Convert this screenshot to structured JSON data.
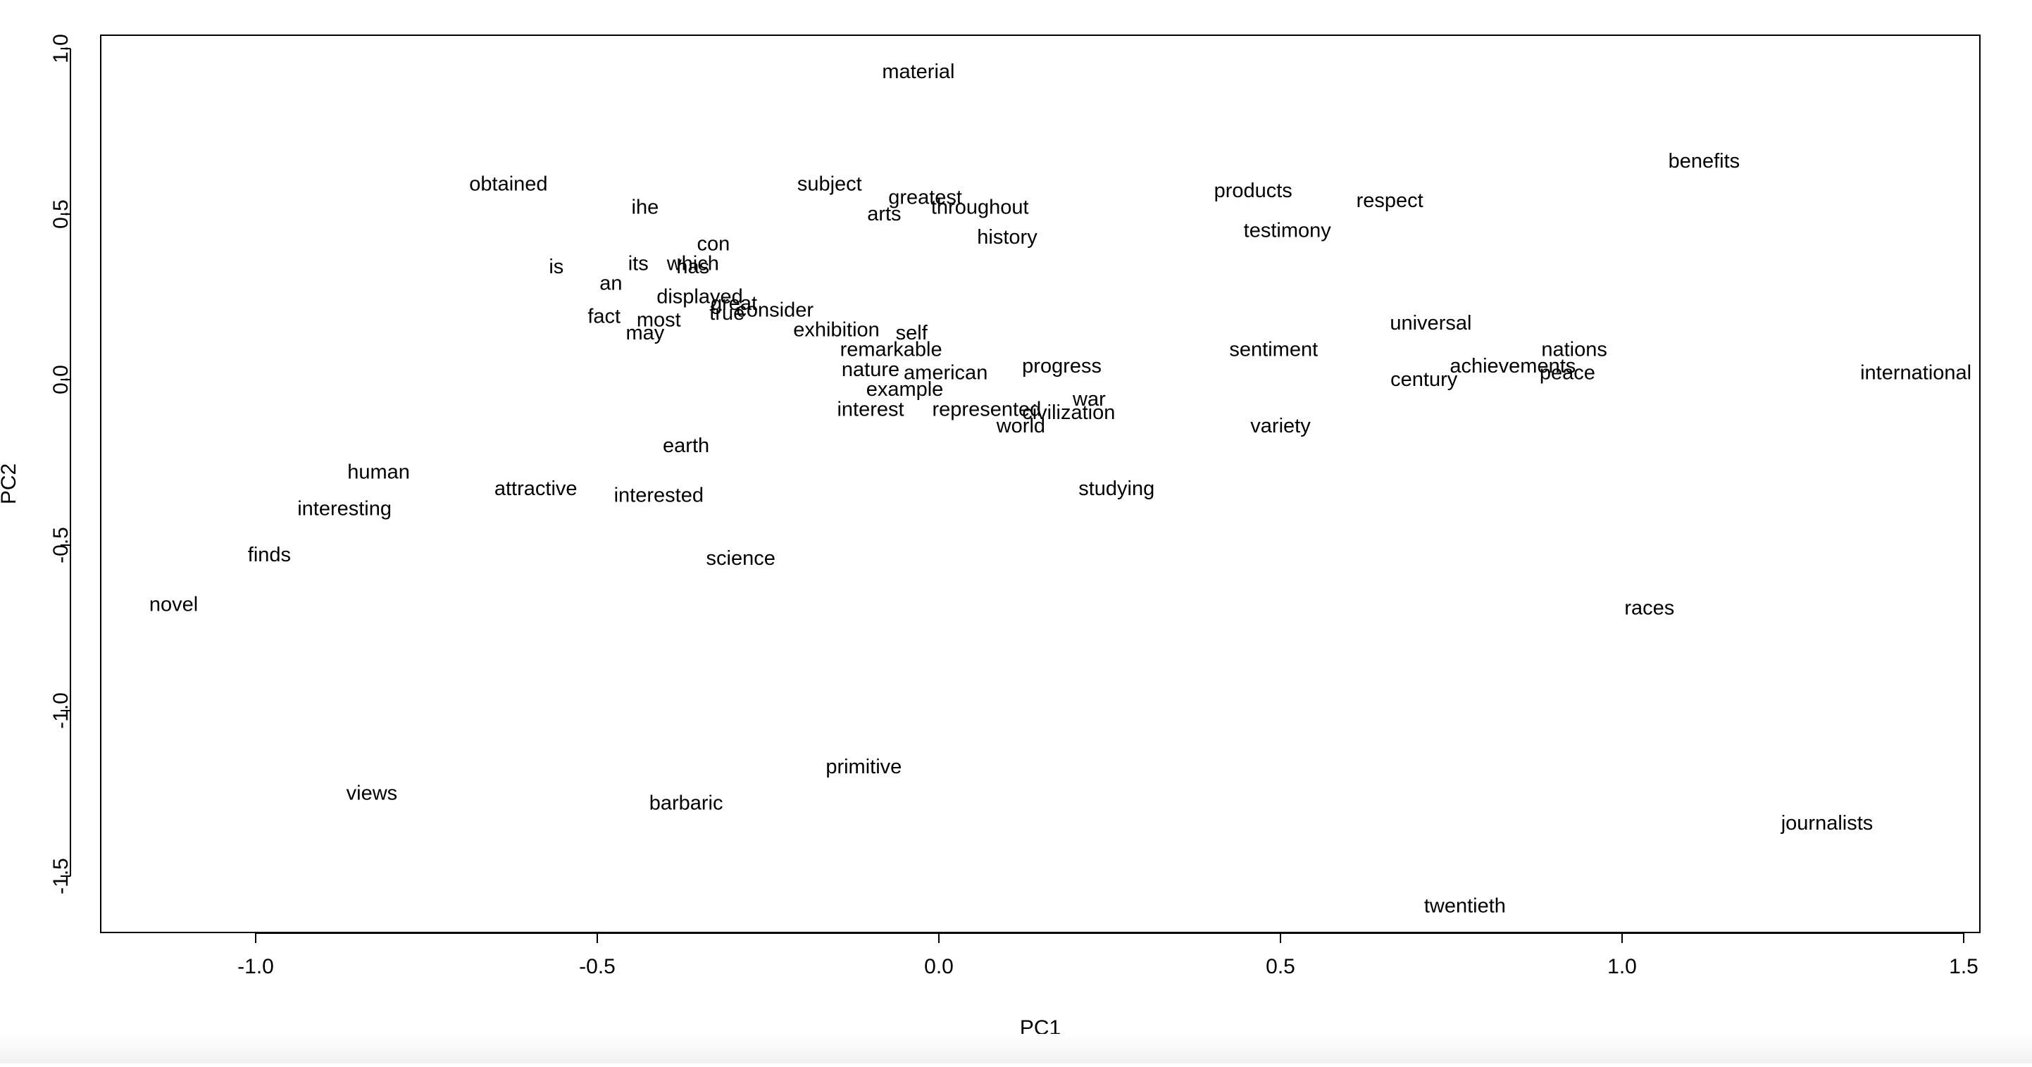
{
  "colors": {
    "background": "#ffffff",
    "ink": "#000000"
  },
  "chart_data": {
    "type": "scatter",
    "title": "",
    "xlabel": "PC1",
    "ylabel": "PC2",
    "xlim": [
      -1.22,
      1.53
    ],
    "ylim": [
      -1.68,
      1.04
    ],
    "xticks": [
      -1.0,
      -0.5,
      0.0,
      0.5,
      1.0,
      1.5
    ],
    "yticks": [
      1.0,
      0.5,
      0.0,
      -0.5,
      -1.0,
      -1.5
    ],
    "xtick_labels": [
      "-1.0",
      "-0.5",
      "0.0",
      "0.5",
      "1.0",
      "1.5"
    ],
    "ytick_labels": [
      "1.0",
      "0.5",
      "0.0",
      "-0.5",
      "-1.0",
      "-1.5"
    ],
    "grid": false,
    "legend": "none",
    "marker": "text label at point",
    "points": [
      {
        "label": "material",
        "x": -0.03,
        "y": 0.93
      },
      {
        "label": "benefits",
        "x": 1.12,
        "y": 0.66
      },
      {
        "label": "obtained",
        "x": -0.63,
        "y": 0.59
      },
      {
        "label": "subject",
        "x": -0.16,
        "y": 0.59
      },
      {
        "label": "products",
        "x": 0.46,
        "y": 0.57
      },
      {
        "label": "greatest",
        "x": -0.02,
        "y": 0.55
      },
      {
        "label": "respect",
        "x": 0.66,
        "y": 0.54
      },
      {
        "label": "ihe",
        "x": -0.43,
        "y": 0.52
      },
      {
        "label": "throughout",
        "x": 0.06,
        "y": 0.52
      },
      {
        "label": "arts",
        "x": -0.08,
        "y": 0.5
      },
      {
        "label": "testimony",
        "x": 0.51,
        "y": 0.45
      },
      {
        "label": "history",
        "x": 0.1,
        "y": 0.43
      },
      {
        "label": "con",
        "x": -0.33,
        "y": 0.41
      },
      {
        "label": "is",
        "x": -0.56,
        "y": 0.34
      },
      {
        "label": "its",
        "x": -0.44,
        "y": 0.35
      },
      {
        "label": "which",
        "x": -0.36,
        "y": 0.35
      },
      {
        "label": "has",
        "x": -0.36,
        "y": 0.34
      },
      {
        "label": "an",
        "x": -0.48,
        "y": 0.29
      },
      {
        "label": "displayed",
        "x": -0.35,
        "y": 0.25
      },
      {
        "label": "great",
        "x": -0.3,
        "y": 0.23
      },
      {
        "label": "true",
        "x": -0.31,
        "y": 0.2
      },
      {
        "label": "consider",
        "x": -0.24,
        "y": 0.21
      },
      {
        "label": "fact",
        "x": -0.49,
        "y": 0.19
      },
      {
        "label": "most",
        "x": -0.41,
        "y": 0.18
      },
      {
        "label": "may",
        "x": -0.43,
        "y": 0.14
      },
      {
        "label": "exhibition",
        "x": -0.15,
        "y": 0.15
      },
      {
        "label": "self",
        "x": -0.04,
        "y": 0.14
      },
      {
        "label": "universal",
        "x": 0.72,
        "y": 0.17
      },
      {
        "label": "remarkable",
        "x": -0.07,
        "y": 0.09
      },
      {
        "label": "sentiment",
        "x": 0.49,
        "y": 0.09
      },
      {
        "label": "nations",
        "x": 0.93,
        "y": 0.09
      },
      {
        "label": "nature",
        "x": -0.1,
        "y": 0.03
      },
      {
        "label": "american",
        "x": 0.01,
        "y": 0.02
      },
      {
        "label": "progress",
        "x": 0.18,
        "y": 0.04
      },
      {
        "label": "achievements",
        "x": 0.84,
        "y": 0.04
      },
      {
        "label": "peace",
        "x": 0.92,
        "y": 0.02
      },
      {
        "label": "international",
        "x": 1.43,
        "y": 0.02
      },
      {
        "label": "century",
        "x": 0.71,
        "y": 0.0
      },
      {
        "label": "example",
        "x": -0.05,
        "y": -0.03
      },
      {
        "label": "war",
        "x": 0.22,
        "y": -0.06
      },
      {
        "label": "interest",
        "x": -0.1,
        "y": -0.09
      },
      {
        "label": "represented",
        "x": 0.07,
        "y": -0.09
      },
      {
        "label": "civilization",
        "x": 0.19,
        "y": -0.1
      },
      {
        "label": "world",
        "x": 0.12,
        "y": -0.14
      },
      {
        "label": "variety",
        "x": 0.5,
        "y": -0.14
      },
      {
        "label": "earth",
        "x": -0.37,
        "y": -0.2
      },
      {
        "label": "human",
        "x": -0.82,
        "y": -0.28
      },
      {
        "label": "attractive",
        "x": -0.59,
        "y": -0.33
      },
      {
        "label": "studying",
        "x": 0.26,
        "y": -0.33
      },
      {
        "label": "interested",
        "x": -0.41,
        "y": -0.35
      },
      {
        "label": "interesting",
        "x": -0.87,
        "y": -0.39
      },
      {
        "label": "finds",
        "x": -0.98,
        "y": -0.53
      },
      {
        "label": "science",
        "x": -0.29,
        "y": -0.54
      },
      {
        "label": "novel",
        "x": -1.12,
        "y": -0.68
      },
      {
        "label": "races",
        "x": 1.04,
        "y": -0.69
      },
      {
        "label": "primitive",
        "x": -0.11,
        "y": -1.17
      },
      {
        "label": "views",
        "x": -0.83,
        "y": -1.25
      },
      {
        "label": "barbaric",
        "x": -0.37,
        "y": -1.28
      },
      {
        "label": "journalists",
        "x": 1.3,
        "y": -1.34
      },
      {
        "label": "twentieth",
        "x": 0.77,
        "y": -1.59
      }
    ]
  }
}
